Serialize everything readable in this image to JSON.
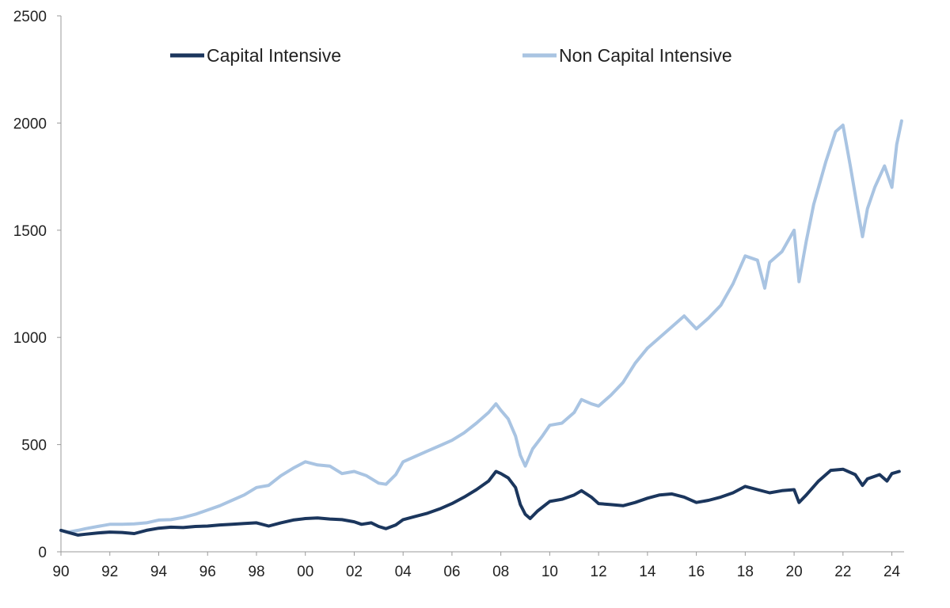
{
  "chart_data": {
    "type": "line",
    "title": "",
    "xlabel": "",
    "ylabel": "",
    "xlim": [
      1990,
      2024.5
    ],
    "ylim": [
      0,
      2500
    ],
    "grid": false,
    "legend_position": "top",
    "x_ticks": [
      {
        "value": 1990,
        "label": "90"
      },
      {
        "value": 1992,
        "label": "92"
      },
      {
        "value": 1994,
        "label": "94"
      },
      {
        "value": 1996,
        "label": "96"
      },
      {
        "value": 1998,
        "label": "98"
      },
      {
        "value": 2000,
        "label": "00"
      },
      {
        "value": 2002,
        "label": "02"
      },
      {
        "value": 2004,
        "label": "04"
      },
      {
        "value": 2006,
        "label": "06"
      },
      {
        "value": 2008,
        "label": "08"
      },
      {
        "value": 2010,
        "label": "10"
      },
      {
        "value": 2012,
        "label": "12"
      },
      {
        "value": 2014,
        "label": "14"
      },
      {
        "value": 2016,
        "label": "16"
      },
      {
        "value": 2018,
        "label": "18"
      },
      {
        "value": 2020,
        "label": "20"
      },
      {
        "value": 2022,
        "label": "22"
      },
      {
        "value": 2024,
        "label": "24"
      }
    ],
    "y_ticks": [
      {
        "value": 0,
        "label": "0"
      },
      {
        "value": 500,
        "label": "500"
      },
      {
        "value": 1000,
        "label": "1000"
      },
      {
        "value": 1500,
        "label": "1500"
      },
      {
        "value": 2000,
        "label": "2000"
      },
      {
        "value": 2500,
        "label": "2500"
      }
    ],
    "series": [
      {
        "name": "Capital Intensive",
        "color": "#1b365d",
        "points": [
          [
            1990.0,
            100
          ],
          [
            1990.3,
            90
          ],
          [
            1990.7,
            78
          ],
          [
            1991.0,
            82
          ],
          [
            1991.5,
            88
          ],
          [
            1992.0,
            92
          ],
          [
            1992.5,
            90
          ],
          [
            1993.0,
            85
          ],
          [
            1993.5,
            100
          ],
          [
            1994.0,
            110
          ],
          [
            1994.5,
            115
          ],
          [
            1995.0,
            113
          ],
          [
            1995.5,
            118
          ],
          [
            1996.0,
            120
          ],
          [
            1996.5,
            125
          ],
          [
            1997.0,
            128
          ],
          [
            1997.5,
            132
          ],
          [
            1998.0,
            135
          ],
          [
            1998.5,
            120
          ],
          [
            1999.0,
            135
          ],
          [
            1999.5,
            148
          ],
          [
            2000.0,
            155
          ],
          [
            2000.5,
            158
          ],
          [
            2001.0,
            153
          ],
          [
            2001.5,
            150
          ],
          [
            2002.0,
            140
          ],
          [
            2002.3,
            128
          ],
          [
            2002.7,
            135
          ],
          [
            2003.0,
            118
          ],
          [
            2003.3,
            108
          ],
          [
            2003.7,
            125
          ],
          [
            2004.0,
            150
          ],
          [
            2004.5,
            165
          ],
          [
            2005.0,
            180
          ],
          [
            2005.5,
            200
          ],
          [
            2006.0,
            225
          ],
          [
            2006.5,
            255
          ],
          [
            2007.0,
            290
          ],
          [
            2007.5,
            330
          ],
          [
            2007.8,
            375
          ],
          [
            2008.0,
            365
          ],
          [
            2008.3,
            345
          ],
          [
            2008.6,
            300
          ],
          [
            2008.8,
            220
          ],
          [
            2009.0,
            175
          ],
          [
            2009.2,
            155
          ],
          [
            2009.5,
            190
          ],
          [
            2010.0,
            235
          ],
          [
            2010.5,
            245
          ],
          [
            2011.0,
            265
          ],
          [
            2011.3,
            285
          ],
          [
            2011.7,
            255
          ],
          [
            2012.0,
            225
          ],
          [
            2012.5,
            220
          ],
          [
            2013.0,
            215
          ],
          [
            2013.5,
            230
          ],
          [
            2014.0,
            250
          ],
          [
            2014.5,
            265
          ],
          [
            2015.0,
            270
          ],
          [
            2015.5,
            255
          ],
          [
            2016.0,
            230
          ],
          [
            2016.5,
            240
          ],
          [
            2017.0,
            255
          ],
          [
            2017.5,
            275
          ],
          [
            2018.0,
            305
          ],
          [
            2018.5,
            290
          ],
          [
            2019.0,
            275
          ],
          [
            2019.5,
            285
          ],
          [
            2020.0,
            290
          ],
          [
            2020.2,
            230
          ],
          [
            2020.5,
            265
          ],
          [
            2021.0,
            330
          ],
          [
            2021.5,
            380
          ],
          [
            2022.0,
            385
          ],
          [
            2022.5,
            360
          ],
          [
            2022.8,
            310
          ],
          [
            2023.0,
            340
          ],
          [
            2023.5,
            360
          ],
          [
            2023.8,
            330
          ],
          [
            2024.0,
            365
          ],
          [
            2024.3,
            375
          ]
        ]
      },
      {
        "name": "Non Capital Intensive",
        "color": "#a9c4e2",
        "points": [
          [
            1990.0,
            100
          ],
          [
            1990.3,
            92
          ],
          [
            1990.7,
            100
          ],
          [
            1991.0,
            108
          ],
          [
            1991.5,
            118
          ],
          [
            1992.0,
            128
          ],
          [
            1992.5,
            128
          ],
          [
            1993.0,
            130
          ],
          [
            1993.5,
            135
          ],
          [
            1994.0,
            148
          ],
          [
            1994.5,
            150
          ],
          [
            1995.0,
            160
          ],
          [
            1995.5,
            175
          ],
          [
            1996.0,
            195
          ],
          [
            1996.5,
            215
          ],
          [
            1997.0,
            240
          ],
          [
            1997.5,
            265
          ],
          [
            1998.0,
            300
          ],
          [
            1998.5,
            310
          ],
          [
            1999.0,
            355
          ],
          [
            1999.5,
            390
          ],
          [
            2000.0,
            420
          ],
          [
            2000.5,
            405
          ],
          [
            2001.0,
            400
          ],
          [
            2001.5,
            365
          ],
          [
            2002.0,
            375
          ],
          [
            2002.5,
            355
          ],
          [
            2003.0,
            320
          ],
          [
            2003.3,
            315
          ],
          [
            2003.7,
            360
          ],
          [
            2004.0,
            420
          ],
          [
            2004.5,
            445
          ],
          [
            2005.0,
            470
          ],
          [
            2005.5,
            495
          ],
          [
            2006.0,
            520
          ],
          [
            2006.5,
            555
          ],
          [
            2007.0,
            600
          ],
          [
            2007.5,
            650
          ],
          [
            2007.8,
            690
          ],
          [
            2008.0,
            660
          ],
          [
            2008.3,
            620
          ],
          [
            2008.6,
            540
          ],
          [
            2008.8,
            450
          ],
          [
            2009.0,
            400
          ],
          [
            2009.3,
            480
          ],
          [
            2009.7,
            540
          ],
          [
            2010.0,
            590
          ],
          [
            2010.5,
            600
          ],
          [
            2011.0,
            650
          ],
          [
            2011.3,
            710
          ],
          [
            2011.7,
            690
          ],
          [
            2012.0,
            680
          ],
          [
            2012.5,
            730
          ],
          [
            2013.0,
            790
          ],
          [
            2013.5,
            880
          ],
          [
            2014.0,
            950
          ],
          [
            2014.5,
            1000
          ],
          [
            2015.0,
            1050
          ],
          [
            2015.5,
            1100
          ],
          [
            2016.0,
            1040
          ],
          [
            2016.5,
            1090
          ],
          [
            2017.0,
            1150
          ],
          [
            2017.5,
            1250
          ],
          [
            2018.0,
            1380
          ],
          [
            2018.5,
            1360
          ],
          [
            2018.8,
            1230
          ],
          [
            2019.0,
            1350
          ],
          [
            2019.5,
            1400
          ],
          [
            2020.0,
            1500
          ],
          [
            2020.2,
            1260
          ],
          [
            2020.5,
            1450
          ],
          [
            2020.8,
            1620
          ],
          [
            2021.0,
            1700
          ],
          [
            2021.3,
            1820
          ],
          [
            2021.7,
            1960
          ],
          [
            2022.0,
            1990
          ],
          [
            2022.3,
            1800
          ],
          [
            2022.6,
            1600
          ],
          [
            2022.8,
            1470
          ],
          [
            2023.0,
            1600
          ],
          [
            2023.3,
            1700
          ],
          [
            2023.7,
            1800
          ],
          [
            2024.0,
            1700
          ],
          [
            2024.2,
            1900
          ],
          [
            2024.4,
            2010
          ]
        ]
      }
    ]
  }
}
